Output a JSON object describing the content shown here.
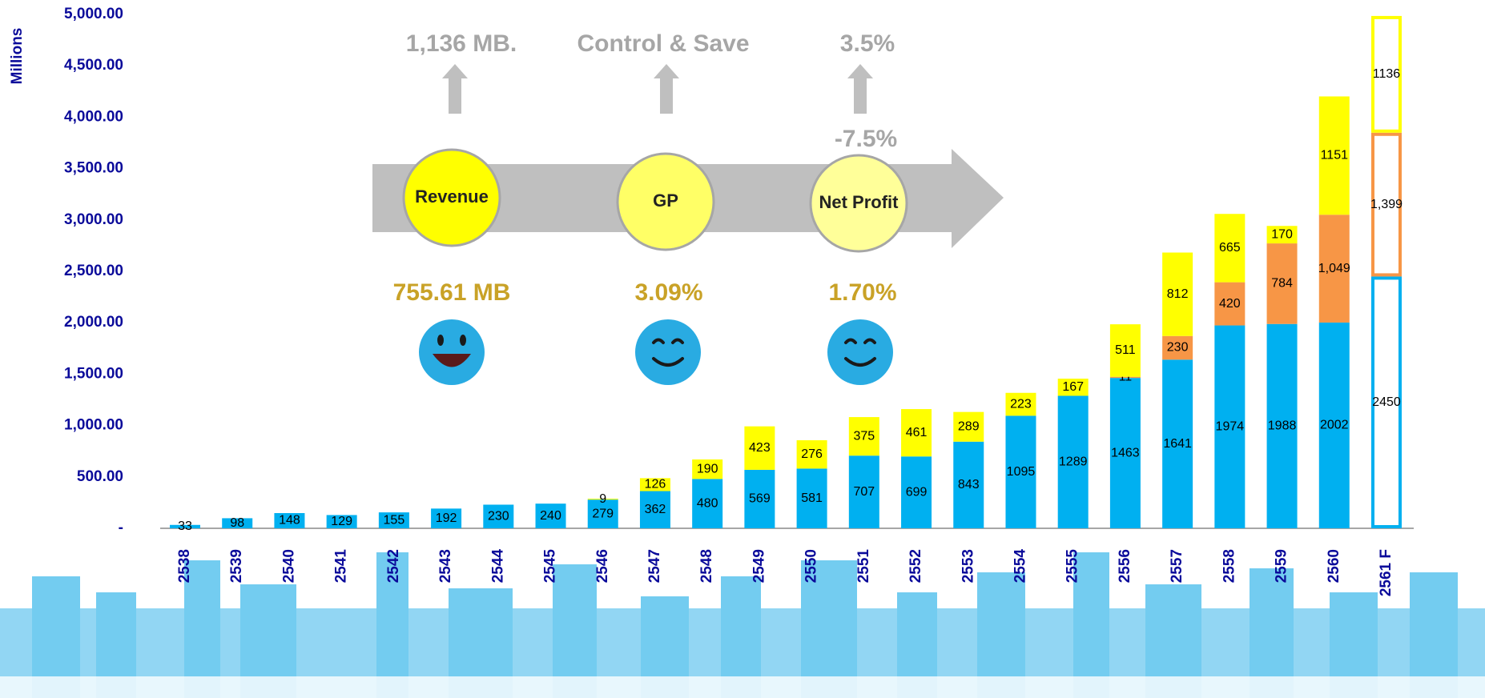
{
  "chart_data": {
    "type": "stacked_bar",
    "y_label": "Millions",
    "annotations": [
      "1,136 MB.",
      "Control & Save",
      "3.5%",
      "-7.5%",
      "Revenue",
      "GP",
      "Net Profit",
      "755.61 MB",
      "3.09%",
      "1.70%"
    ],
    "categories": [
      "2538",
      "2539",
      "2540",
      "2541",
      "2542",
      "2543",
      "2544",
      "2545",
      "2546",
      "2547",
      "2548",
      "2549",
      "2550",
      "2551",
      "2552",
      "2553",
      "2554",
      "2555",
      "2556",
      "2557",
      "2558",
      "2559",
      "2560",
      "2561 F"
    ],
    "series": [
      {
        "color": "#00b0f0",
        "values": [
          33,
          98,
          148,
          129,
          155,
          192,
          230,
          240,
          279,
          362,
          480,
          569,
          581,
          707,
          699,
          843,
          1095,
          1289,
          1463,
          1641,
          1974,
          1988,
          2002,
          2450
        ]
      },
      {
        "color": "#f79646",
        "values": [
          null,
          null,
          null,
          null,
          null,
          null,
          null,
          null,
          null,
          null,
          null,
          null,
          null,
          null,
          null,
          null,
          null,
          null,
          11,
          230,
          420,
          784,
          1049,
          1399
        ],
        "value_labels": [
          null,
          null,
          null,
          null,
          null,
          null,
          null,
          null,
          null,
          null,
          null,
          null,
          null,
          null,
          null,
          null,
          null,
          null,
          "11",
          "230",
          "420",
          "784",
          "1,049",
          "1,399"
        ]
      },
      {
        "color": "#ffff00",
        "values": [
          null,
          null,
          null,
          null,
          null,
          null,
          null,
          null,
          9,
          126,
          190,
          423,
          276,
          375,
          461,
          289,
          223,
          167,
          511,
          812,
          665,
          170,
          1151,
          1136
        ]
      }
    ],
    "hollow_last": true,
    "ylim": [
      0,
      5000
    ],
    "yticks": [
      {
        "value": 0,
        "label": "-"
      },
      {
        "value": 500,
        "label": "500.00"
      },
      {
        "value": 1000,
        "label": "1,000.00"
      },
      {
        "value": 1500,
        "label": "1,500.00"
      },
      {
        "value": 2000,
        "label": "2,000.00"
      },
      {
        "value": 2500,
        "label": "2,500.00"
      },
      {
        "value": 3000,
        "label": "3,000.00"
      },
      {
        "value": 3500,
        "label": "3,500.00"
      },
      {
        "value": 4000,
        "label": "4,000.00"
      },
      {
        "value": 4500,
        "label": "4,500.00"
      },
      {
        "value": 5000,
        "label": "5,000.00"
      }
    ],
    "grid": false
  }
}
